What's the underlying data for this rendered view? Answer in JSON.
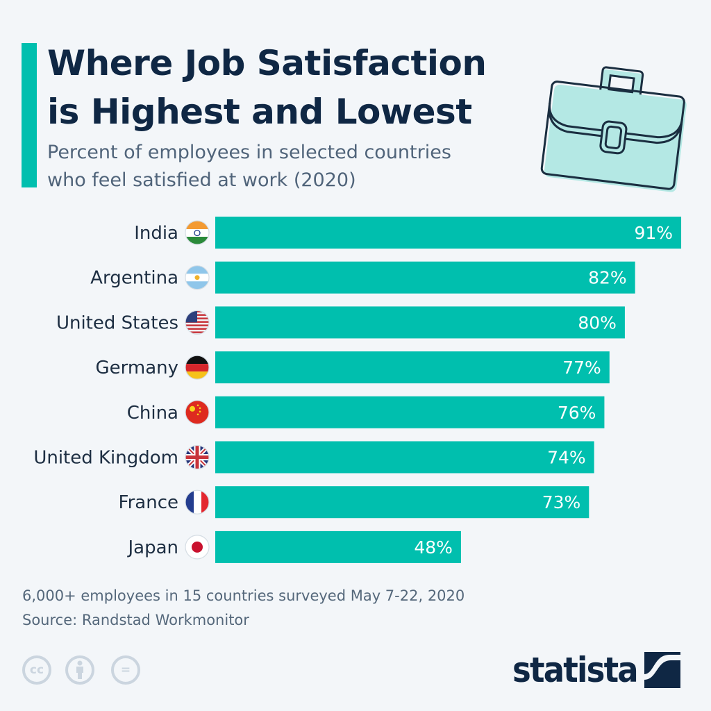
{
  "header": {
    "title_line1": "Where Job Satisfaction",
    "title_line2": "is Highest and Lowest",
    "subtitle_line1": "Percent of employees in selected countries",
    "subtitle_line2": "who feel satisfied at work (2020)"
  },
  "colors": {
    "bar": "#00bfae",
    "title": "#0f2744",
    "accent": "#00bfae",
    "background": "#f3f6f9"
  },
  "chart_data": {
    "type": "bar",
    "orientation": "horizontal",
    "categories": [
      "India",
      "Argentina",
      "United States",
      "Germany",
      "China",
      "United Kingdom",
      "France",
      "Japan"
    ],
    "values": [
      91,
      82,
      80,
      77,
      76,
      74,
      73,
      48
    ],
    "value_labels": [
      "91%",
      "82%",
      "80%",
      "77%",
      "76%",
      "74%",
      "73%",
      "48%"
    ],
    "flags": [
      "india-flag",
      "argentina-flag",
      "usa-flag",
      "germany-flag",
      "china-flag",
      "uk-flag",
      "france-flag",
      "japan-flag"
    ],
    "unit": "%",
    "xlim": [
      0,
      100
    ],
    "grid": false
  },
  "footer": {
    "note": "6,000+ employees in 15 countries surveyed May 7-22, 2020",
    "source": "Source: Randstad Workmonitor",
    "license_icons": [
      "cc",
      "by",
      "nd"
    ],
    "cc_label": "cc",
    "nd_label": "=",
    "logo": "statista"
  }
}
